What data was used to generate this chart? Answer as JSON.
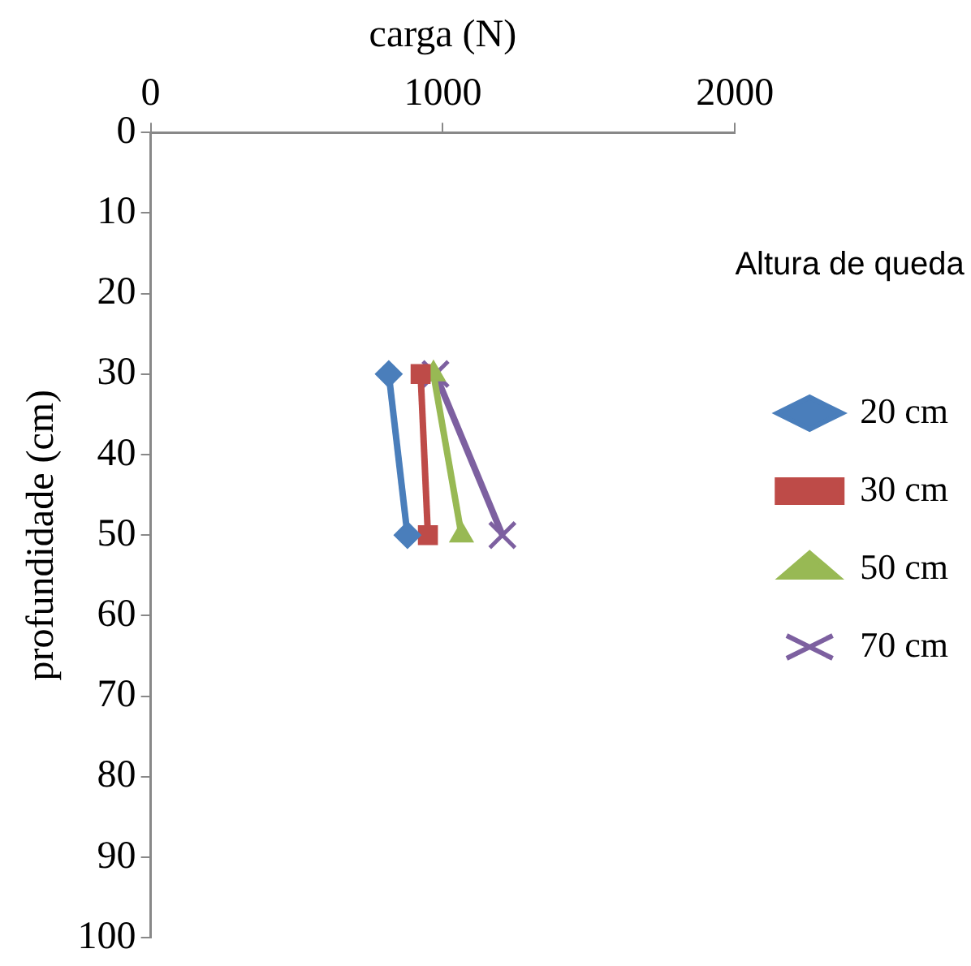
{
  "chart_data": {
    "type": "line",
    "xlabel": "carga (N)",
    "ylabel": "profundidade (cm)",
    "legend_title": "Altura de queda",
    "legend": "right",
    "grid": false,
    "xlim": [
      0,
      2000
    ],
    "xticks": [
      0,
      1000,
      2000
    ],
    "ylim": [
      100,
      0
    ],
    "yticks": [
      0,
      10,
      20,
      30,
      40,
      50,
      60,
      70,
      80,
      90,
      100
    ],
    "series": [
      {
        "name": "20 cm",
        "color": "#4a7ebb",
        "marker": "diamond",
        "x": [
          815,
          879
        ],
        "values": [
          30,
          50
        ]
      },
      {
        "name": "30 cm",
        "color": "#be4b48",
        "marker": "square",
        "x": [
          924,
          949
        ],
        "values": [
          30,
          50
        ]
      },
      {
        "name": "50 cm",
        "color": "#98b954",
        "marker": "triangle",
        "x": [
          968,
          1064
        ],
        "values": [
          30,
          50
        ]
      },
      {
        "name": "70 cm",
        "color": "#7d60a0",
        "marker": "cross",
        "x": [
          975,
          1204
        ],
        "values": [
          30,
          50
        ]
      }
    ]
  }
}
